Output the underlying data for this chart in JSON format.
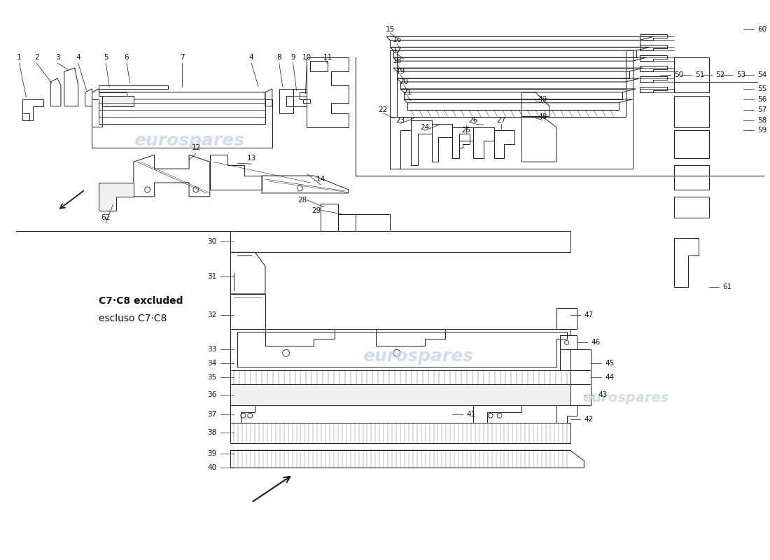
{
  "bg_color": "#ffffff",
  "line_color": "#1a1a1a",
  "watermark_color": "#c8d8e8",
  "watermark_text": "eurospares",
  "annotation_fontsize": 7.5,
  "annotation_color": "#111111",
  "figure_width": 11.0,
  "figure_height": 8.0,
  "dpi": 100,
  "note_text1": "C7·C8 excluded",
  "note_text2": "escluso C7·C8",
  "note_fontsize": 10
}
